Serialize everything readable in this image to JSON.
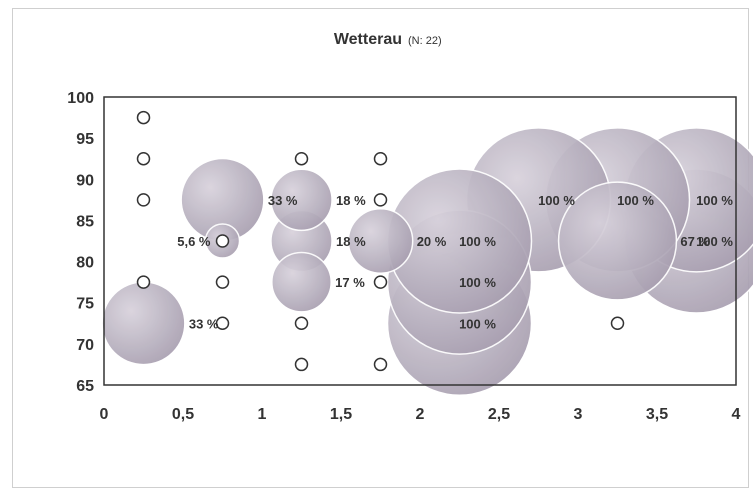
{
  "chart_data": {
    "type": "scatter",
    "title": "Wetterau",
    "subtitle": "(N: 22)",
    "xlabel": "",
    "ylabel": "",
    "xlim": [
      0,
      4
    ],
    "ylim": [
      65,
      100
    ],
    "x_ticks": [
      {
        "value": 0,
        "label": "0"
      },
      {
        "value": 0.5,
        "label": "0,5"
      },
      {
        "value": 1,
        "label": "1"
      },
      {
        "value": 1.5,
        "label": "1,5"
      },
      {
        "value": 2,
        "label": "2"
      },
      {
        "value": 2.5,
        "label": "2,5"
      },
      {
        "value": 3,
        "label": "3"
      },
      {
        "value": 3.5,
        "label": "3,5"
      },
      {
        "value": 4,
        "label": "4"
      }
    ],
    "y_ticks": [
      {
        "value": 65,
        "label": "65"
      },
      {
        "value": 70,
        "label": "70"
      },
      {
        "value": 75,
        "label": "75"
      },
      {
        "value": 80,
        "label": "80"
      },
      {
        "value": 85,
        "label": "85"
      },
      {
        "value": 90,
        "label": "90"
      },
      {
        "value": 95,
        "label": "95"
      },
      {
        "value": 100,
        "label": "100"
      }
    ],
    "grid": false,
    "legend": "none",
    "colors": {
      "bubble_fill": "#b9b2c0",
      "bubble_stroke": "#ffffff",
      "open_marker_stroke": "#333333",
      "axis": "#333333"
    },
    "empty_points": [
      {
        "x": 0.25,
        "y": 97.5
      },
      {
        "x": 0.25,
        "y": 92.5
      },
      {
        "x": 0.25,
        "y": 87.5
      },
      {
        "x": 0.25,
        "y": 77.5
      },
      {
        "x": 0.75,
        "y": 82.5
      },
      {
        "x": 0.75,
        "y": 77.5
      },
      {
        "x": 0.75,
        "y": 72.5
      },
      {
        "x": 1.25,
        "y": 92.5
      },
      {
        "x": 1.25,
        "y": 72.5
      },
      {
        "x": 1.25,
        "y": 67.5
      },
      {
        "x": 1.75,
        "y": 92.5
      },
      {
        "x": 1.75,
        "y": 87.5
      },
      {
        "x": 1.75,
        "y": 77.5
      },
      {
        "x": 1.75,
        "y": 67.5
      },
      {
        "x": 3.25,
        "y": 72.5
      }
    ],
    "bubbles": [
      {
        "x": 0.25,
        "y": 72.5,
        "value": 33,
        "label": "33 %"
      },
      {
        "x": 0.75,
        "y": 87.5,
        "value": 33,
        "label": "33 %"
      },
      {
        "x": 0.75,
        "y": 82.5,
        "value": 5.6,
        "label": "5,6 %"
      },
      {
        "x": 1.25,
        "y": 87.5,
        "value": 18,
        "label": "18 %"
      },
      {
        "x": 1.25,
        "y": 82.5,
        "value": 18,
        "label": "18 %"
      },
      {
        "x": 1.25,
        "y": 77.5,
        "value": 17,
        "label": "17 %"
      },
      {
        "x": 1.75,
        "y": 82.5,
        "value": 20,
        "label": "20 %"
      },
      {
        "x": 2.25,
        "y": 82.5,
        "value": 100,
        "label": "100 %"
      },
      {
        "x": 2.25,
        "y": 77.5,
        "value": 100,
        "label": "100 %"
      },
      {
        "x": 2.25,
        "y": 72.5,
        "value": 100,
        "label": "100 %"
      },
      {
        "x": 2.75,
        "y": 87.5,
        "value": 100,
        "label": "100 %"
      },
      {
        "x": 3.25,
        "y": 87.5,
        "value": 100,
        "label": "100 %"
      },
      {
        "x": 3.25,
        "y": 82.5,
        "value": 67,
        "label": "67 %"
      },
      {
        "x": 3.75,
        "y": 87.5,
        "value": 100,
        "label": "100 %"
      },
      {
        "x": 3.75,
        "y": 82.5,
        "value": 100,
        "label": "100 %"
      }
    ]
  }
}
